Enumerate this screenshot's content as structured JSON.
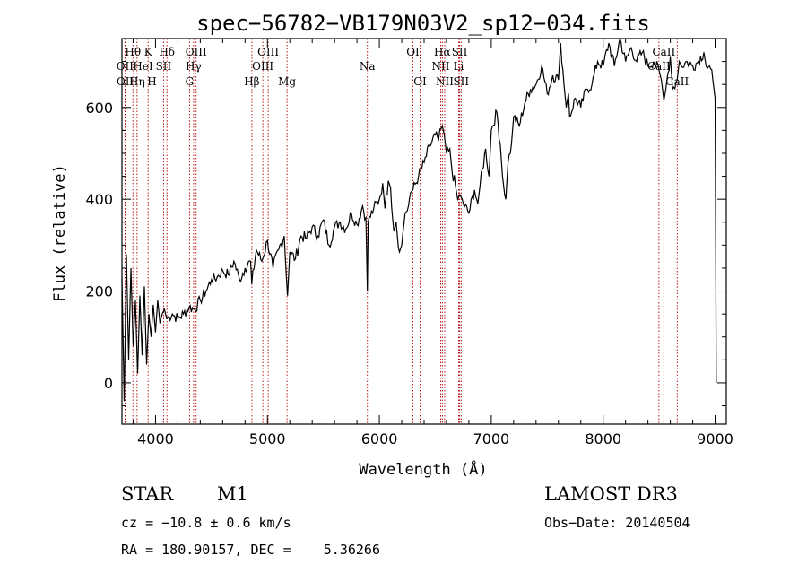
{
  "chart_data": {
    "type": "line",
    "title": "spec−56782−VB179N03V2_sp12−034.fits",
    "xlabel": "Wavelength (Å)",
    "ylabel": "Flux (relative)",
    "xlim": [
      3700,
      9100
    ],
    "ylim": [
      -90,
      750
    ],
    "x_ticks": [
      4000,
      5000,
      6000,
      7000,
      8000,
      9000
    ],
    "y_ticks": [
      0,
      200,
      400,
      600
    ],
    "spectrum": {
      "name": "flux",
      "x": [
        3700,
        3720,
        3740,
        3760,
        3780,
        3800,
        3820,
        3840,
        3860,
        3880,
        3900,
        3920,
        3940,
        3960,
        3980,
        4000,
        4020,
        4040,
        4060,
        4080,
        4100,
        4150,
        4200,
        4250,
        4300,
        4350,
        4400,
        4450,
        4500,
        4550,
        4600,
        4650,
        4700,
        4750,
        4800,
        4850,
        4860,
        4900,
        4950,
        5000,
        5050,
        5100,
        5150,
        5180,
        5200,
        5250,
        5300,
        5350,
        5400,
        5450,
        5500,
        5550,
        5600,
        5650,
        5700,
        5750,
        5800,
        5850,
        5880,
        5893,
        5900,
        5950,
        6000,
        6030,
        6050,
        6080,
        6100,
        6130,
        6150,
        6180,
        6200,
        6230,
        6250,
        6280,
        6300,
        6350,
        6400,
        6450,
        6500,
        6530,
        6563,
        6580,
        6600,
        6630,
        6650,
        6680,
        6700,
        6720,
        6750,
        6800,
        6850,
        6880,
        6900,
        6950,
        6980,
        7000,
        7050,
        7080,
        7100,
        7130,
        7150,
        7180,
        7200,
        7250,
        7300,
        7350,
        7400,
        7450,
        7500,
        7550,
        7600,
        7610,
        7620,
        7650,
        7670,
        7690,
        7700,
        7750,
        7800,
        7850,
        7900,
        7950,
        8000,
        8050,
        8100,
        8150,
        8200,
        8250,
        8300,
        8350,
        8400,
        8450,
        8500,
        8520,
        8542,
        8560,
        8600,
        8620,
        8662,
        8680,
        8700,
        8750,
        8800,
        8850,
        8900,
        8920,
        8950,
        8980,
        9000,
        9003,
        9010
      ],
      "y": [
        230,
        -40,
        280,
        50,
        250,
        80,
        180,
        20,
        190,
        60,
        210,
        40,
        150,
        100,
        170,
        110,
        180,
        130,
        150,
        160,
        140,
        150,
        140,
        150,
        165,
        160,
        180,
        200,
        225,
        230,
        245,
        235,
        265,
        225,
        250,
        265,
        215,
        290,
        265,
        310,
        250,
        290,
        320,
        190,
        285,
        270,
        320,
        315,
        340,
        320,
        355,
        300,
        340,
        350,
        335,
        370,
        345,
        385,
        360,
        200,
        350,
        380,
        400,
        435,
        380,
        440,
        425,
        330,
        350,
        285,
        300,
        370,
        375,
        415,
        420,
        450,
        480,
        515,
        540,
        530,
        560,
        540,
        500,
        510,
        460,
        430,
        400,
        410,
        390,
        370,
        420,
        390,
        430,
        510,
        450,
        550,
        590,
        520,
        450,
        400,
        480,
        520,
        580,
        560,
        610,
        640,
        650,
        690,
        630,
        670,
        660,
        700,
        740,
        650,
        600,
        630,
        580,
        620,
        600,
        640,
        650,
        700,
        690,
        740,
        690,
        750,
        700,
        730,
        700,
        720,
        690,
        700,
        680,
        660,
        615,
        640,
        710,
        640,
        660,
        700,
        690,
        700,
        690,
        700,
        720,
        690,
        690,
        660,
        620,
        450,
        0
      ]
    },
    "lines_top": [
      {
        "label": "Hθ",
        "x": 3798
      },
      {
        "label": "K",
        "x": 3934
      },
      {
        "label": "Hδ",
        "x": 4102
      },
      {
        "label": "OIII",
        "x": 4363
      },
      {
        "label": "OIII",
        "x": 5007
      },
      {
        "label": "OI",
        "x": 6300
      },
      {
        "label": "Hα",
        "x": 6563
      },
      {
        "label": "SII",
        "x": 6717
      },
      {
        "label": "CaII",
        "x": 8542
      }
    ],
    "lines_mid": [
      {
        "label": "OII",
        "x": 3727
      },
      {
        "label": "HeI",
        "x": 3889
      },
      {
        "label": "SII",
        "x": 4072
      },
      {
        "label": "Hγ",
        "x": 4340
      },
      {
        "label": "OIII",
        "x": 4959
      },
      {
        "label": "Na",
        "x": 5893
      },
      {
        "label": "NII",
        "x": 6548
      },
      {
        "label": "Li",
        "x": 6708
      },
      {
        "label": "CaII",
        "x": 8498
      }
    ],
    "lines_low": [
      {
        "label": "OII",
        "x": 3729
      },
      {
        "label": "Hη",
        "x": 3835
      },
      {
        "label": "H",
        "x": 3968
      },
      {
        "label": "G",
        "x": 4304
      },
      {
        "label": "Hβ",
        "x": 4861
      },
      {
        "label": "Mg",
        "x": 5175
      },
      {
        "label": "OI",
        "x": 6364
      },
      {
        "label": "NII",
        "x": 6584
      },
      {
        "label": "SII",
        "x": 6731
      },
      {
        "label": "CaII",
        "x": 8662
      }
    ]
  },
  "info": {
    "object_class": "STAR",
    "subclass": "M1",
    "survey": "LAMOST DR3",
    "redshift": "cz = −10.8 ± 0.6 km/s",
    "obs_date": "Obs−Date: 20140504",
    "coords": "RA = 180.90157, DEC =    5.36266"
  }
}
